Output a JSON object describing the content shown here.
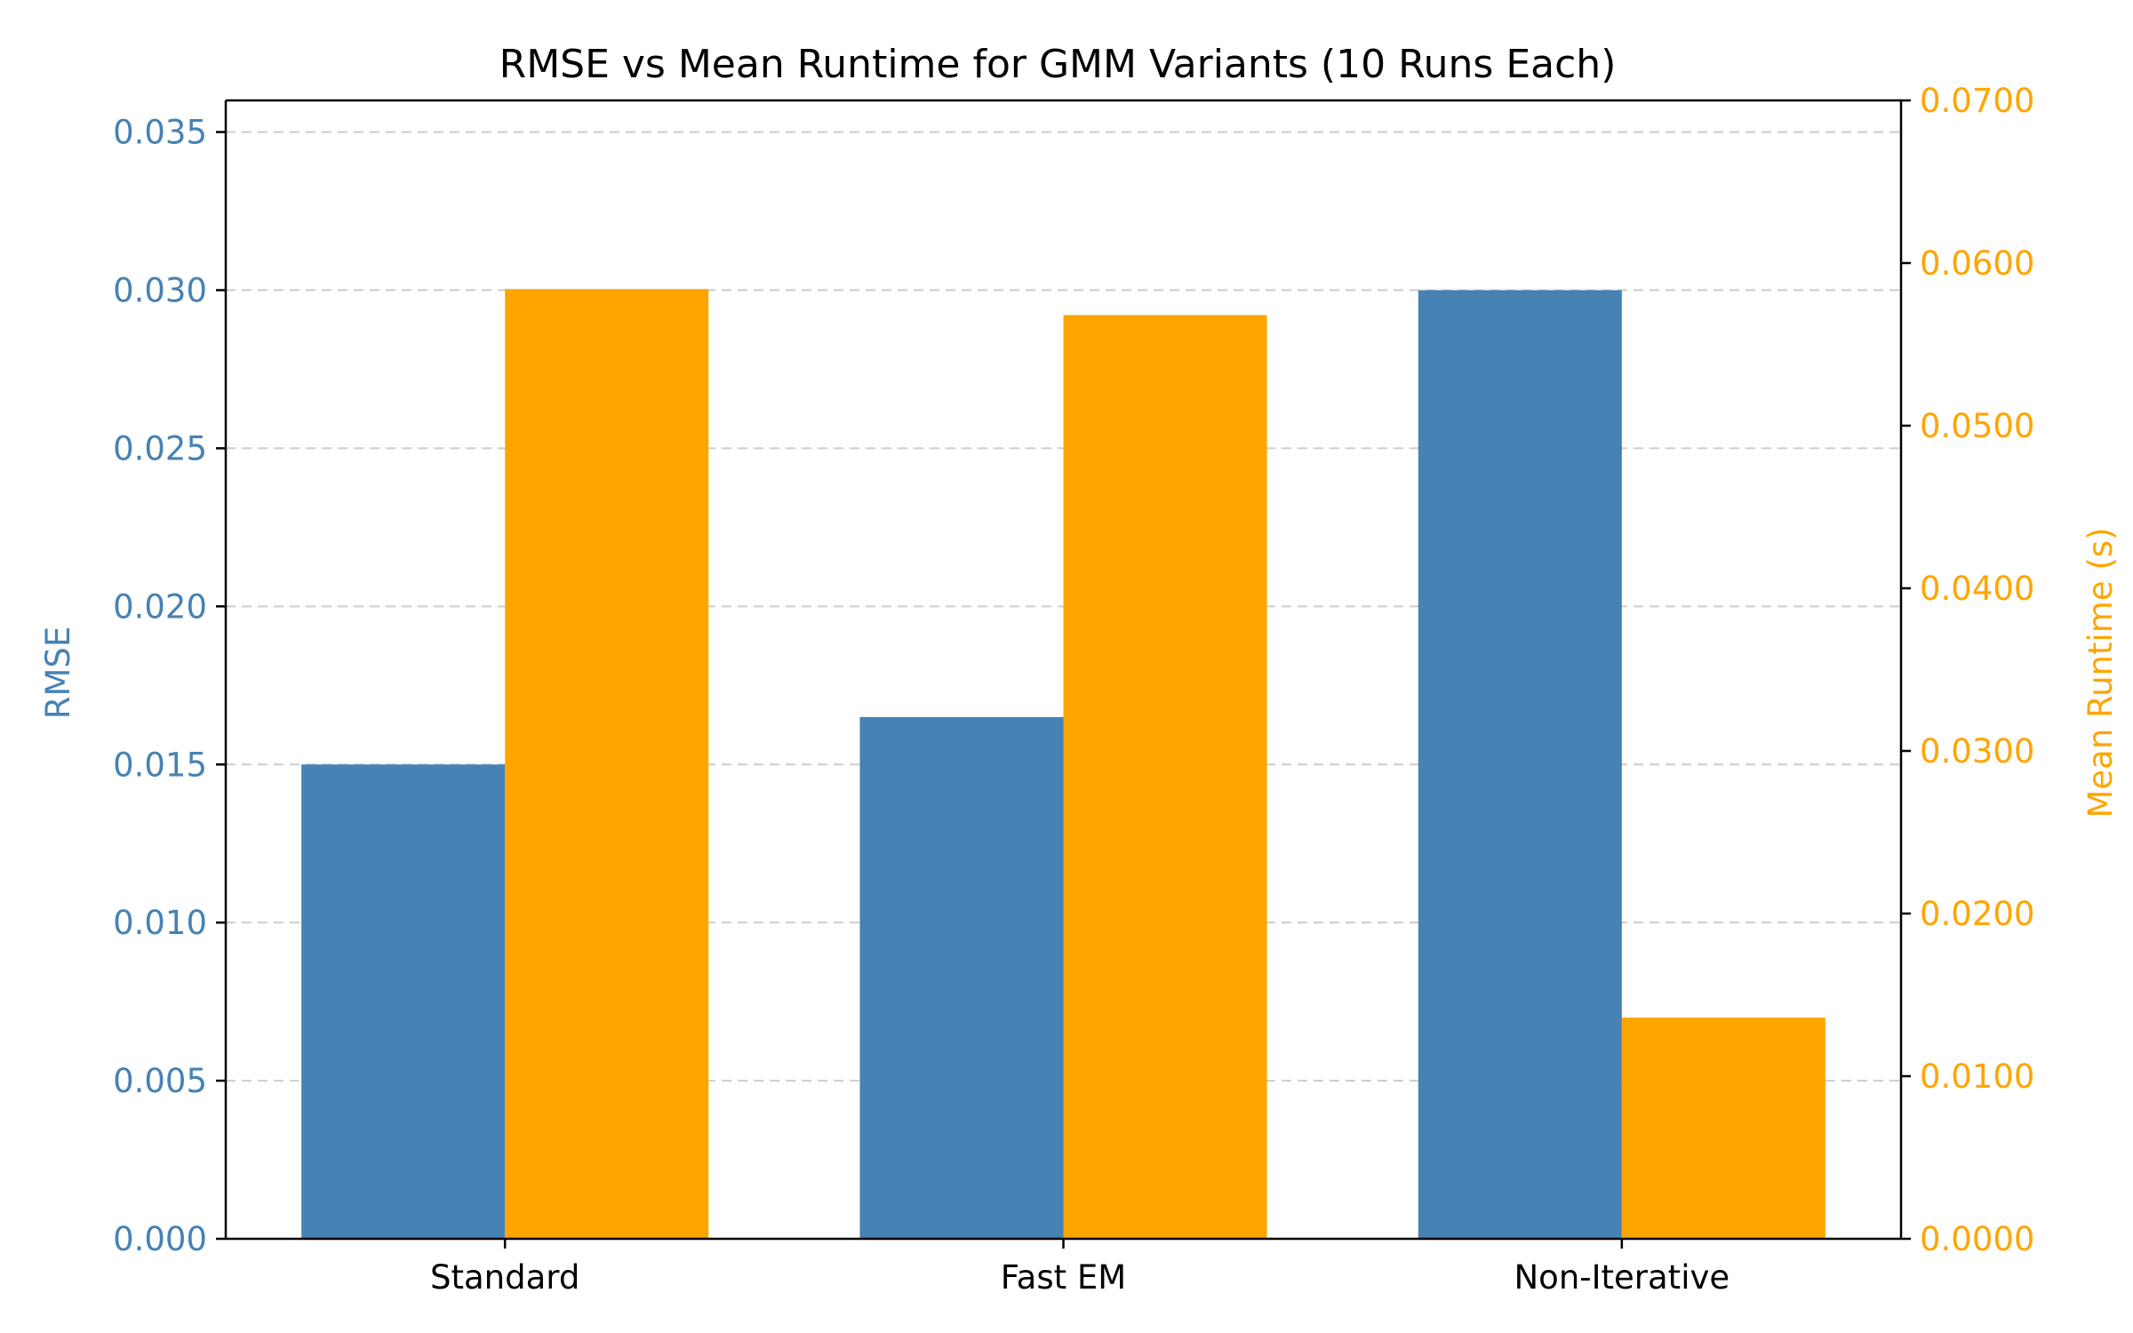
{
  "chart_data": {
    "type": "bar",
    "title": "RMSE vs Mean Runtime for GMM Variants (10 Runs Each)",
    "categories": [
      "Standard",
      "Fast EM",
      "Non-Iterative"
    ],
    "series": [
      {
        "name": "RMSE",
        "axis": "left",
        "color": "#4682b4",
        "values": [
          0.015,
          0.0165,
          0.03
        ]
      },
      {
        "name": "Mean Runtime (s)",
        "axis": "right",
        "color": "#ffa500",
        "values": [
          0.0584,
          0.0568,
          0.0136
        ]
      }
    ],
    "y_left": {
      "label": "RMSE",
      "color": "#4682b4",
      "lim": [
        0,
        0.036
      ],
      "ticks": [
        0.0,
        0.005,
        0.01,
        0.015,
        0.02,
        0.025,
        0.03,
        0.035
      ],
      "tick_labels": [
        "0.000",
        "0.005",
        "0.010",
        "0.015",
        "0.020",
        "0.025",
        "0.030",
        "0.035"
      ]
    },
    "y_right": {
      "label": "Mean Runtime (s)",
      "color": "#ffa500",
      "lim": [
        0,
        0.07
      ],
      "ticks": [
        0.0,
        0.01,
        0.02,
        0.03,
        0.04,
        0.05,
        0.06,
        0.07
      ],
      "tick_labels": [
        "0.0000",
        "0.0100",
        "0.0200",
        "0.0300",
        "0.0400",
        "0.0500",
        "0.0600",
        "0.0700"
      ]
    },
    "grid": "horizontal-dashed",
    "grid_color": "#cccccc",
    "axis_color": "#000000"
  }
}
